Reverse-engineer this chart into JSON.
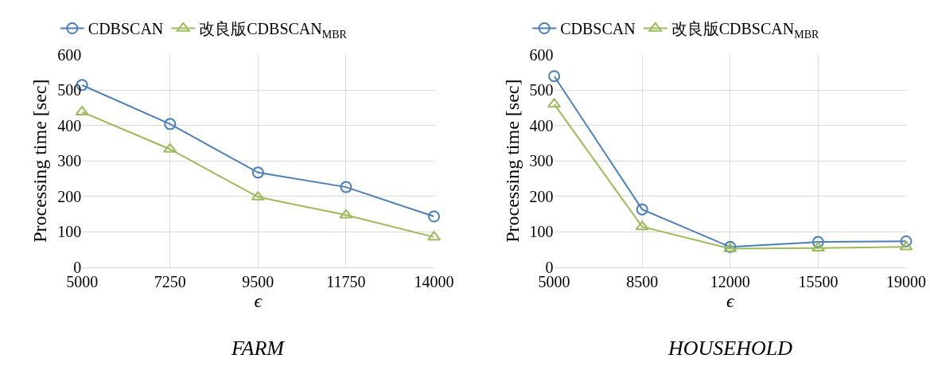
{
  "chart_data": [
    {
      "type": "line",
      "title": "FARM",
      "xlabel": "ϵ",
      "ylabel": "Processing time [sec]",
      "x": [
        5000,
        7250,
        9500,
        11750,
        14000
      ],
      "xlim": [
        5000,
        14000
      ],
      "xticks": [
        5000,
        7250,
        9500,
        11750,
        14000
      ],
      "ylim": [
        0,
        600
      ],
      "yticks": [
        0,
        100,
        200,
        300,
        400,
        500,
        600
      ],
      "grid": true,
      "legend": "top",
      "series": [
        {
          "name": "CDBSCAN",
          "color": "#4a7ebb",
          "marker": "circle",
          "values": [
            514,
            404,
            267,
            226,
            143
          ]
        },
        {
          "name": "改良版CDBSCAN$_{MBR}$",
          "color": "#9bbb59",
          "marker": "triangle",
          "values": [
            438,
            333,
            198,
            147,
            85
          ]
        }
      ]
    },
    {
      "type": "line",
      "title": "HOUSEHOLD",
      "xlabel": "ϵ",
      "ylabel": "Processing time [sec]",
      "x": [
        5000,
        8500,
        12000,
        15500,
        19000
      ],
      "xlim": [
        5000,
        19000
      ],
      "xticks": [
        5000,
        8500,
        12000,
        15500,
        19000
      ],
      "ylim": [
        0,
        600
      ],
      "yticks": [
        0,
        100,
        200,
        300,
        400,
        500,
        600
      ],
      "grid": true,
      "legend": "top",
      "series": [
        {
          "name": "CDBSCAN",
          "color": "#4a7ebb",
          "marker": "circle",
          "values": [
            539,
            163,
            57,
            71,
            73
          ]
        },
        {
          "name": "改良版CDBSCAN$_{MBR}$",
          "color": "#9bbb59",
          "marker": "triangle",
          "values": [
            460,
            114,
            52,
            54,
            57
          ]
        }
      ]
    }
  ]
}
